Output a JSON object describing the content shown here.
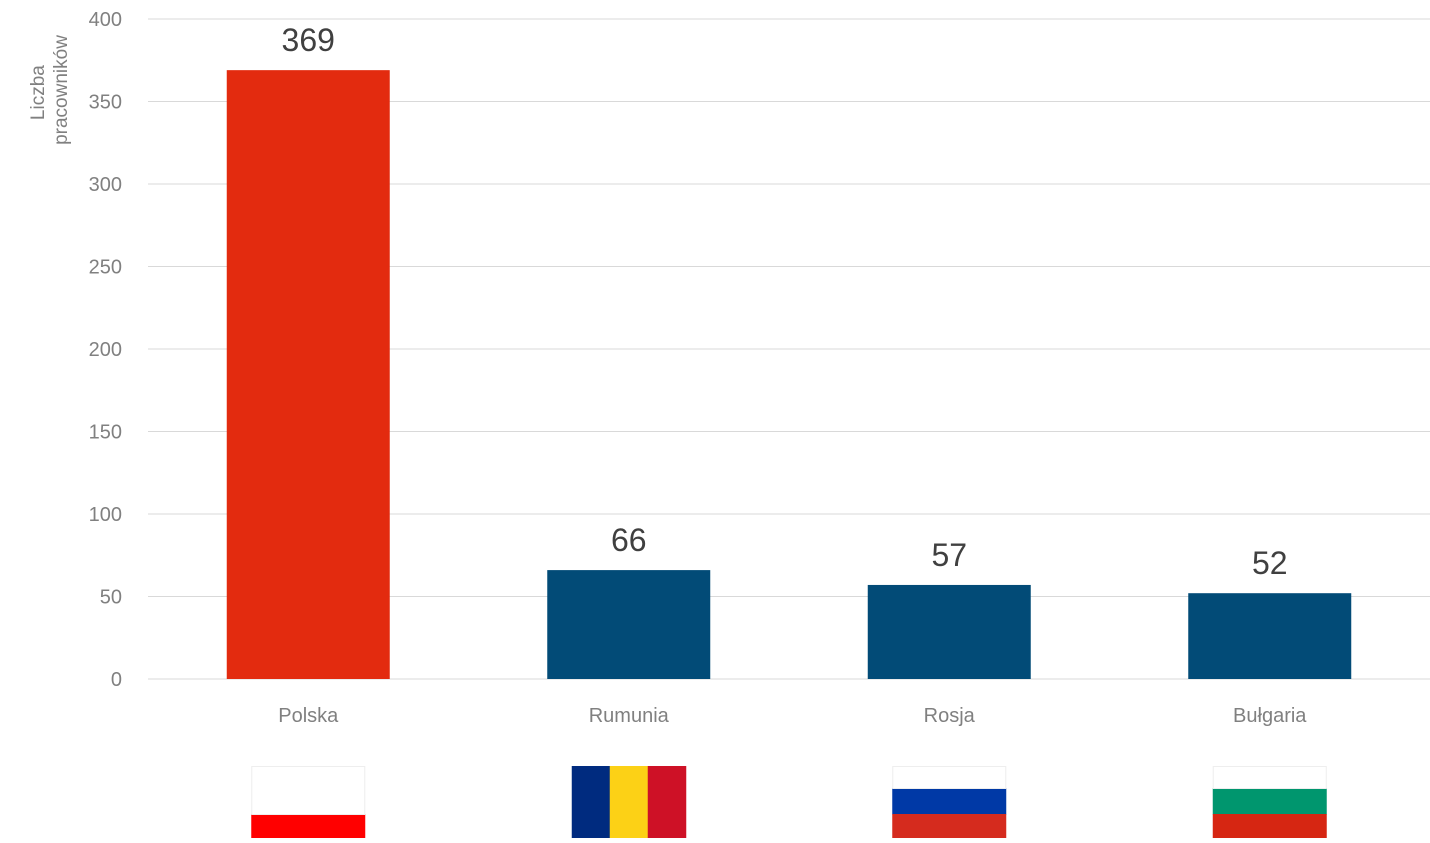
{
  "chart_data": {
    "type": "bar",
    "categories": [
      "Polska",
      "Rumunia",
      "Rosja",
      "Bułgaria"
    ],
    "values": [
      369,
      66,
      57,
      52
    ],
    "data_labels": [
      "369",
      "66",
      "57",
      "52"
    ],
    "ylabel_lines": [
      "Liczba",
      "pracowników"
    ],
    "ylim": [
      0,
      400
    ],
    "yticks": [
      0,
      50,
      100,
      150,
      200,
      250,
      300,
      350,
      400
    ],
    "ytick_labels": [
      "0",
      "50",
      "100",
      "150",
      "200",
      "250",
      "300",
      "350",
      "400"
    ],
    "grid": true,
    "bar_colors": [
      "#e32b0f",
      "#024b77",
      "#024b77",
      "#024b77"
    ],
    "gridline_color": "#d9d9d9",
    "flags": [
      {
        "country": "Polska",
        "icon": "flag-poland-icon",
        "orientation": "horizontal",
        "colors": [
          "#ffffff",
          "#ff0000"
        ]
      },
      {
        "country": "Rumunia",
        "icon": "flag-romania-icon",
        "orientation": "vertical",
        "colors": [
          "#002b7f",
          "#fcd116",
          "#ce1126"
        ]
      },
      {
        "country": "Rosja",
        "icon": "flag-russia-icon",
        "orientation": "horizontal",
        "colors": [
          "#ffffff",
          "#0039a6",
          "#d52b1e"
        ]
      },
      {
        "country": "Bułgaria",
        "icon": "flag-bulgaria-icon",
        "orientation": "horizontal",
        "colors": [
          "#ffffff",
          "#00966e",
          "#d62612"
        ]
      }
    ]
  }
}
